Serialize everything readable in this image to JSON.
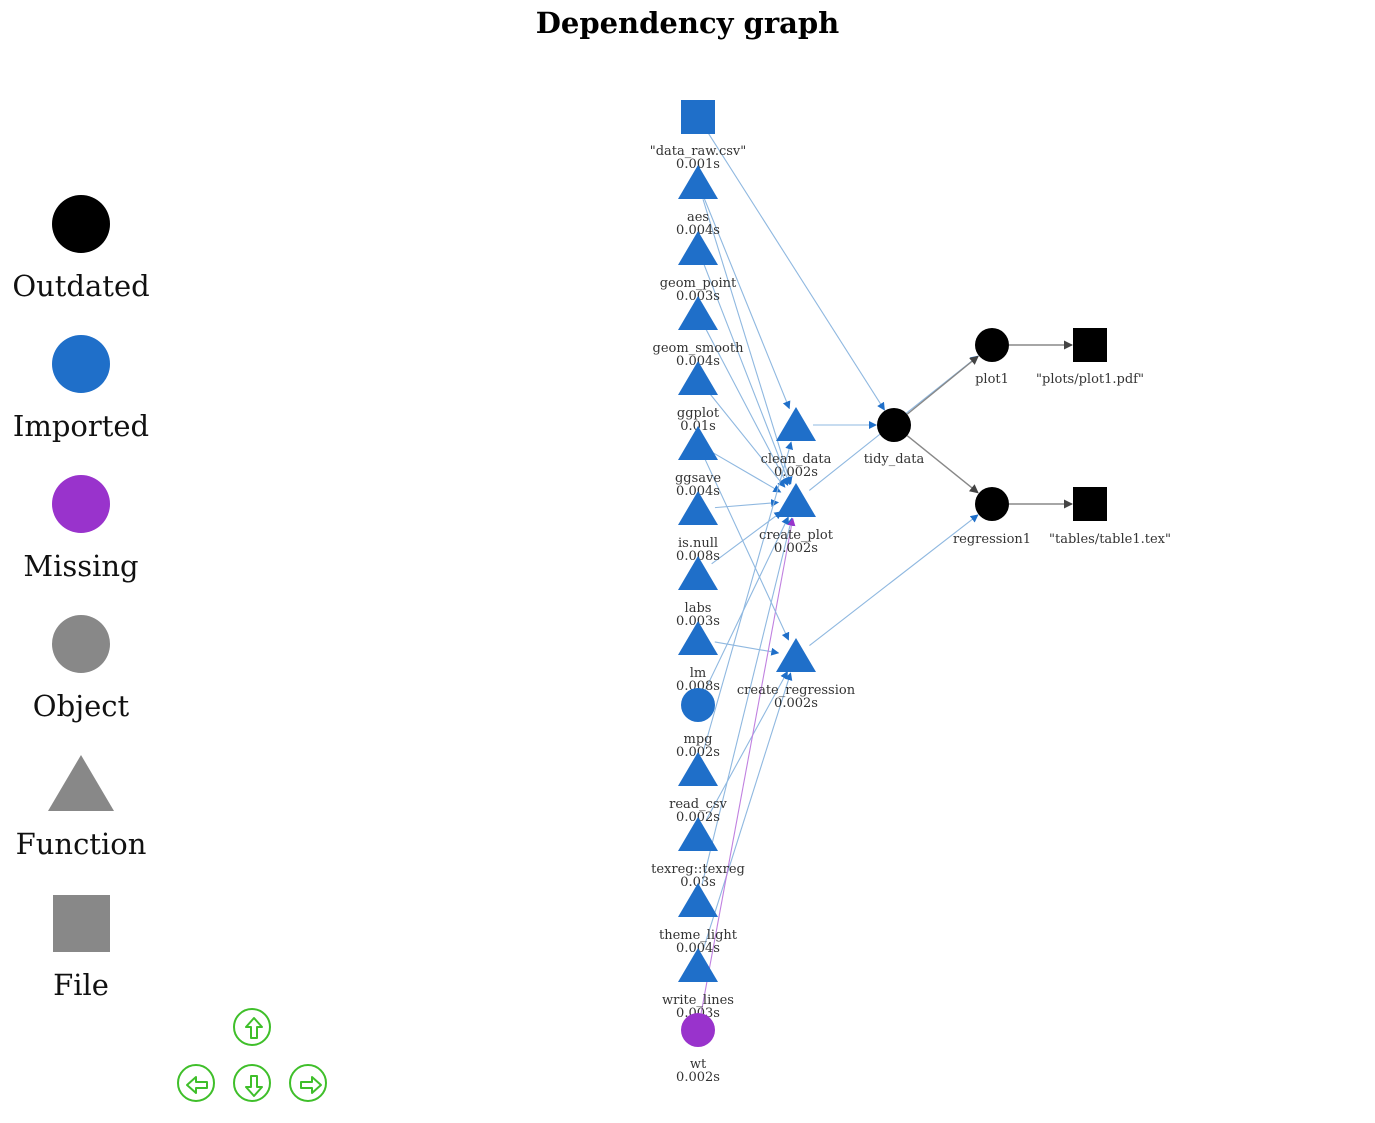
{
  "title": "Dependency graph",
  "colors": {
    "outdated": "#000000",
    "imported": "#1f6fc9",
    "missing": "#9933cc",
    "object": "#888888",
    "function": "#888888",
    "file": "#888888",
    "nav": "#3fbf2a",
    "edge_blue": "#8fb8e0",
    "edge_gray": "#888888",
    "edge_purple": "#c080e0"
  },
  "legend": [
    {
      "label": "Outdated",
      "shape": "circle",
      "color": "#000000"
    },
    {
      "label": "Imported",
      "shape": "circle",
      "color": "#1f6fc9"
    },
    {
      "label": "Missing",
      "shape": "circle",
      "color": "#9933cc"
    },
    {
      "label": "Object",
      "shape": "circle",
      "color": "#888888"
    },
    {
      "label": "Function",
      "shape": "triangle",
      "color": "#888888"
    },
    {
      "label": "File",
      "shape": "square",
      "color": "#888888"
    }
  ],
  "nodes": [
    {
      "id": "data_raw",
      "label": "\"data_raw.csv\"",
      "time": "0.001s",
      "shape": "square",
      "status": "imported"
    },
    {
      "id": "aes",
      "label": "aes",
      "time": "0.004s",
      "shape": "triangle",
      "status": "imported"
    },
    {
      "id": "geom_point",
      "label": "geom_point",
      "time": "0.003s",
      "shape": "triangle",
      "status": "imported"
    },
    {
      "id": "geom_smooth",
      "label": "geom_smooth",
      "time": "0.004s",
      "shape": "triangle",
      "status": "imported"
    },
    {
      "id": "ggplot",
      "label": "ggplot",
      "time": "0.01s",
      "shape": "triangle",
      "status": "imported"
    },
    {
      "id": "ggsave",
      "label": "ggsave",
      "time": "0.004s",
      "shape": "triangle",
      "status": "imported"
    },
    {
      "id": "is_null",
      "label": "is.null",
      "time": "0.008s",
      "shape": "triangle",
      "status": "imported"
    },
    {
      "id": "labs",
      "label": "labs",
      "time": "0.003s",
      "shape": "triangle",
      "status": "imported"
    },
    {
      "id": "lm",
      "label": "lm",
      "time": "0.008s",
      "shape": "triangle",
      "status": "imported"
    },
    {
      "id": "mpg",
      "label": "mpg",
      "time": "0.002s",
      "shape": "circle",
      "status": "imported"
    },
    {
      "id": "read_csv",
      "label": "read_csv",
      "time": "0.002s",
      "shape": "triangle",
      "status": "imported"
    },
    {
      "id": "texreg",
      "label": "texreg::texreg",
      "time": "0.03s",
      "shape": "triangle",
      "status": "imported"
    },
    {
      "id": "theme_light",
      "label": "theme_light",
      "time": "0.004s",
      "shape": "triangle",
      "status": "imported"
    },
    {
      "id": "write_lines",
      "label": "write_lines",
      "time": "0.003s",
      "shape": "triangle",
      "status": "imported"
    },
    {
      "id": "wt",
      "label": "wt",
      "time": "0.002s",
      "shape": "circle",
      "status": "missing"
    },
    {
      "id": "clean_data",
      "label": "clean_data",
      "time": "0.002s",
      "shape": "triangle",
      "status": "imported"
    },
    {
      "id": "create_plot",
      "label": "create_plot",
      "time": "0.002s",
      "shape": "triangle",
      "status": "imported"
    },
    {
      "id": "create_regression",
      "label": "create_regression",
      "time": "0.002s",
      "shape": "triangle",
      "status": "imported"
    },
    {
      "id": "tidy_data",
      "label": "tidy_data",
      "time": "",
      "shape": "circle",
      "status": "outdated"
    },
    {
      "id": "plot1",
      "label": "plot1",
      "time": "",
      "shape": "circle",
      "status": "outdated"
    },
    {
      "id": "regression1",
      "label": "regression1",
      "time": "",
      "shape": "circle",
      "status": "outdated"
    },
    {
      "id": "plot1_pdf",
      "label": "\"plots/plot1.pdf\"",
      "time": "",
      "shape": "square",
      "status": "outdated"
    },
    {
      "id": "table1_tex",
      "label": "\"tables/table1.tex\"",
      "time": "",
      "shape": "square",
      "status": "outdated"
    }
  ],
  "edges": [
    {
      "from": "data_raw",
      "to": "tidy_data",
      "color": "blue"
    },
    {
      "from": "aes",
      "to": "create_plot",
      "color": "blue"
    },
    {
      "from": "geom_point",
      "to": "create_plot",
      "color": "blue"
    },
    {
      "from": "geom_smooth",
      "to": "create_plot",
      "color": "blue"
    },
    {
      "from": "ggplot",
      "to": "create_plot",
      "color": "blue"
    },
    {
      "from": "ggsave",
      "to": "create_plot",
      "color": "blue"
    },
    {
      "from": "is_null",
      "to": "create_plot",
      "color": "blue"
    },
    {
      "from": "labs",
      "to": "create_plot",
      "color": "blue"
    },
    {
      "from": "lm",
      "to": "create_regression",
      "color": "blue"
    },
    {
      "from": "mpg",
      "to": "create_plot",
      "color": "blue"
    },
    {
      "from": "read_csv",
      "to": "clean_data",
      "color": "blue"
    },
    {
      "from": "texreg",
      "to": "create_regression",
      "color": "blue"
    },
    {
      "from": "theme_light",
      "to": "create_plot",
      "color": "blue"
    },
    {
      "from": "write_lines",
      "to": "create_regression",
      "color": "blue"
    },
    {
      "from": "wt",
      "to": "create_plot",
      "color": "purple"
    },
    {
      "from": "clean_data",
      "to": "tidy_data",
      "color": "blue"
    },
    {
      "from": "create_plot",
      "to": "plot1",
      "color": "blue"
    },
    {
      "from": "tidy_data",
      "to": "plot1",
      "color": "gray"
    },
    {
      "from": "tidy_data",
      "to": "regression1",
      "color": "gray"
    },
    {
      "from": "create_regression",
      "to": "regression1",
      "color": "blue"
    },
    {
      "from": "plot1",
      "to": "plot1_pdf",
      "color": "gray"
    },
    {
      "from": "regression1",
      "to": "table1_tex",
      "color": "gray"
    },
    {
      "from": "aes",
      "to": "clean_data",
      "color": "blue"
    },
    {
      "from": "ggsave",
      "to": "create_regression",
      "color": "blue"
    }
  ],
  "nav": [
    {
      "name": "nav-up-button",
      "icon": "arrow-up-icon"
    },
    {
      "name": "nav-left-button",
      "icon": "arrow-left-icon"
    },
    {
      "name": "nav-down-button",
      "icon": "arrow-down-icon"
    },
    {
      "name": "nav-right-button",
      "icon": "arrow-right-icon"
    }
  ]
}
